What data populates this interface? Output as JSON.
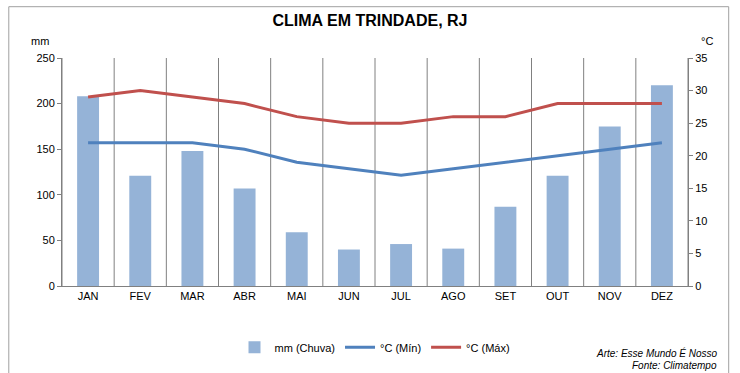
{
  "chart_data": {
    "type": "bar",
    "title": "CLIMA EM TRINDADE, RJ",
    "ylabel": "mm",
    "y2label": "°C",
    "categories": [
      "JAN",
      "FEV",
      "MAR",
      "ABR",
      "MAI",
      "JUN",
      "JUL",
      "AGO",
      "SET",
      "OUT",
      "NOV",
      "DEZ"
    ],
    "series": [
      {
        "name": "mm (Chuva)",
        "type": "bar",
        "color": "#95b3d7",
        "values": [
          208,
          121,
          148,
          107,
          59,
          40,
          46,
          41,
          87,
          121,
          175,
          220
        ]
      },
      {
        "name": "°C (Mín)",
        "type": "line",
        "axis": "y2",
        "color": "#4f81bd",
        "values": [
          22,
          22,
          22,
          21,
          19,
          18,
          17,
          18,
          19,
          20,
          21,
          22
        ]
      },
      {
        "name": "°C (Máx)",
        "type": "line",
        "axis": "y2",
        "color": "#c0504d",
        "values": [
          29,
          30,
          29,
          28,
          26,
          25,
          25,
          26,
          26,
          28,
          28,
          28
        ]
      }
    ],
    "ylim": [
      0,
      250
    ],
    "yticks": [
      0,
      50,
      100,
      150,
      200,
      250
    ],
    "y2lim": [
      0,
      35
    ],
    "y2ticks": [
      0,
      5,
      10,
      15,
      20,
      25,
      30,
      35
    ],
    "grid": true,
    "legend": "bottom",
    "annotations": [
      "Arte: Esse Mundo É Nosso",
      "Fonte: Climatempo"
    ]
  }
}
